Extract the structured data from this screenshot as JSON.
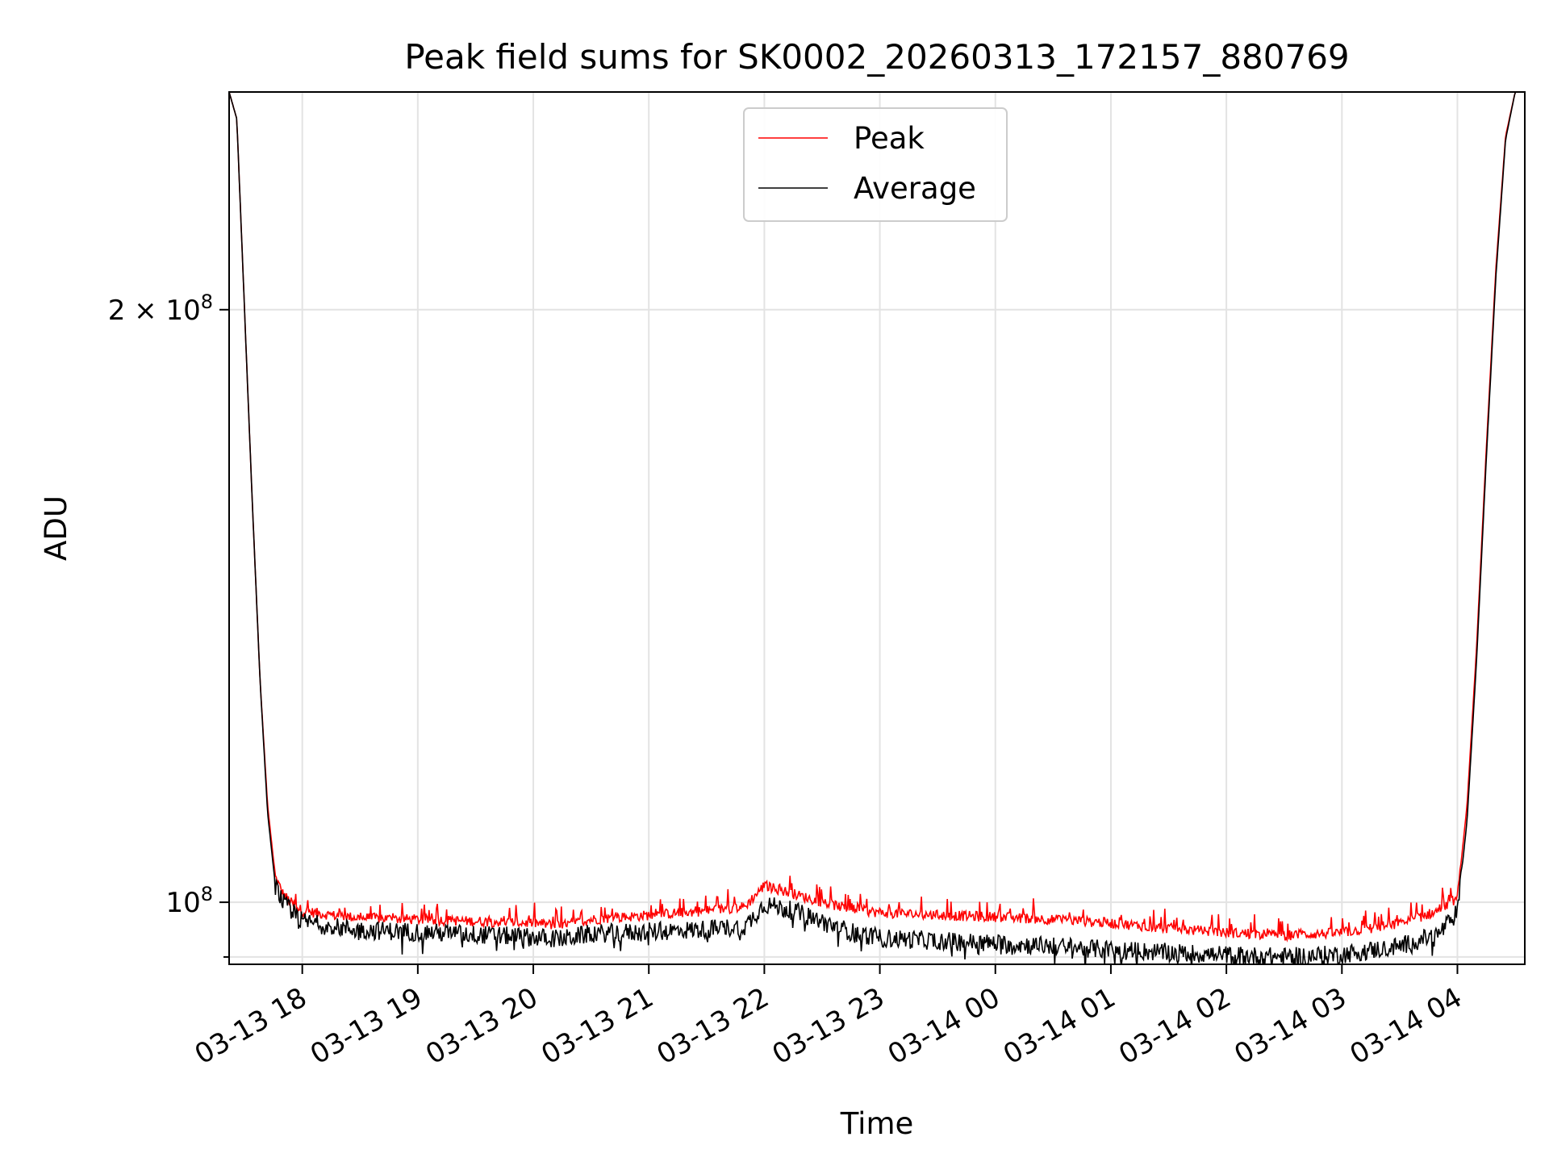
{
  "chart_data": {
    "type": "line",
    "title": "Peak field sums for SK0002_20260313_172157_880769",
    "xlabel": "Time",
    "ylabel": "ADU",
    "y_scale": "log",
    "xlim": [
      "2026-03-13 17:22",
      "2026-03-14 04:35"
    ],
    "ylim": [
      93000000,
      258000000
    ],
    "grid": true,
    "legend_position": "upper center",
    "x_ticks": [
      {
        "value": "2026-03-13 18:00",
        "label": "03-13 18"
      },
      {
        "value": "2026-03-13 19:00",
        "label": "03-13 19"
      },
      {
        "value": "2026-03-13 20:00",
        "label": "03-13 20"
      },
      {
        "value": "2026-03-13 21:00",
        "label": "03-13 21"
      },
      {
        "value": "2026-03-13 22:00",
        "label": "03-13 22"
      },
      {
        "value": "2026-03-13 23:00",
        "label": "03-13 23"
      },
      {
        "value": "2026-03-14 00:00",
        "label": "03-14 00"
      },
      {
        "value": "2026-03-14 01:00",
        "label": "03-14 01"
      },
      {
        "value": "2026-03-14 02:00",
        "label": "03-14 02"
      },
      {
        "value": "2026-03-14 03:00",
        "label": "03-14 03"
      },
      {
        "value": "2026-03-14 04:00",
        "label": "03-14 04"
      }
    ],
    "y_ticks": [
      {
        "value": 100000000,
        "label_base": "10",
        "label_exp": "8"
      },
      {
        "value": 200000000,
        "label_mant": "2 × 10",
        "label_exp": "8"
      }
    ],
    "series": [
      {
        "name": "Peak",
        "color": "#ff0000",
        "x": [
          "2026-03-13 17:22",
          "2026-03-13 17:26",
          "2026-03-13 17:30",
          "2026-03-13 17:34",
          "2026-03-13 17:38",
          "2026-03-13 17:42",
          "2026-03-13 17:46",
          "2026-03-13 17:50",
          "2026-03-13 17:54",
          "2026-03-13 18:00",
          "2026-03-13 18:15",
          "2026-03-13 18:30",
          "2026-03-13 19:00",
          "2026-03-13 19:30",
          "2026-03-13 20:00",
          "2026-03-13 20:15",
          "2026-03-13 20:30",
          "2026-03-13 21:00",
          "2026-03-13 21:30",
          "2026-03-13 21:50",
          "2026-03-13 22:00",
          "2026-03-13 22:15",
          "2026-03-13 22:30",
          "2026-03-13 22:45",
          "2026-03-13 23:00",
          "2026-03-13 23:30",
          "2026-03-14 00:00",
          "2026-03-14 00:30",
          "2026-03-14 01:00",
          "2026-03-14 01:30",
          "2026-03-14 02:00",
          "2026-03-14 02:30",
          "2026-03-14 03:00",
          "2026-03-14 03:30",
          "2026-03-14 03:50",
          "2026-03-14 04:00",
          "2026-03-14 04:05",
          "2026-03-14 04:10",
          "2026-03-14 04:15",
          "2026-03-14 04:20",
          "2026-03-14 04:25",
          "2026-03-14 04:30",
          "2026-03-14 04:35"
        ],
        "values": [
          258000000,
          250000000,
          200000000,
          160000000,
          130000000,
          112000000,
          103000000,
          101000000,
          100000000,
          99000000,
          98500000,
          98200000,
          98000000,
          97800000,
          97600000,
          97300000,
          98000000,
          98500000,
          99000000,
          99500000,
          102000000,
          101000000,
          100000000,
          99200000,
          98800000,
          98500000,
          98300000,
          98000000,
          97600000,
          97000000,
          96500000,
          96200000,
          96500000,
          97500000,
          99000000,
          100500000,
          112000000,
          135000000,
          170000000,
          210000000,
          245000000,
          258000000,
          258000000
        ]
      },
      {
        "name": "Average",
        "color": "#000000",
        "x": [
          "2026-03-13 17:22",
          "2026-03-13 17:26",
          "2026-03-13 17:30",
          "2026-03-13 17:34",
          "2026-03-13 17:38",
          "2026-03-13 17:42",
          "2026-03-13 17:46",
          "2026-03-13 17:50",
          "2026-03-13 17:54",
          "2026-03-13 18:00",
          "2026-03-13 18:15",
          "2026-03-13 18:30",
          "2026-03-13 19:00",
          "2026-03-13 19:30",
          "2026-03-13 20:00",
          "2026-03-13 20:15",
          "2026-03-13 20:30",
          "2026-03-13 21:00",
          "2026-03-13 21:30",
          "2026-03-13 21:50",
          "2026-03-13 22:00",
          "2026-03-13 22:15",
          "2026-03-13 22:30",
          "2026-03-13 22:45",
          "2026-03-13 23:00",
          "2026-03-13 23:30",
          "2026-03-14 00:00",
          "2026-03-14 00:30",
          "2026-03-14 01:00",
          "2026-03-14 01:30",
          "2026-03-14 02:00",
          "2026-03-14 02:30",
          "2026-03-14 03:00",
          "2026-03-14 03:30",
          "2026-03-14 03:50",
          "2026-03-14 04:00",
          "2026-03-14 04:05",
          "2026-03-14 04:10",
          "2026-03-14 04:15",
          "2026-03-14 04:20",
          "2026-03-14 04:25",
          "2026-03-14 04:30",
          "2026-03-14 04:35"
        ],
        "values": [
          258000000,
          250000000,
          200000000,
          160000000,
          130000000,
          111000000,
          102000000,
          100000000,
          99000000,
          97800000,
          97200000,
          96800000,
          96600000,
          96300000,
          96000000,
          95800000,
          96400000,
          96600000,
          96900000,
          97200000,
          99800000,
          99000000,
          97800000,
          96600000,
          95900000,
          95600000,
          95300000,
          95000000,
          94600000,
          94300000,
          94000000,
          93800000,
          94100000,
          95000000,
          96300000,
          98800000,
          110000000,
          133000000,
          168000000,
          208000000,
          244000000,
          258000000,
          258000000
        ]
      }
    ]
  }
}
